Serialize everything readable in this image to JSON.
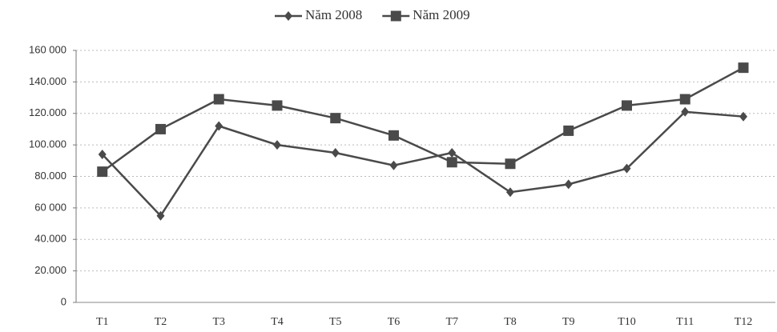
{
  "chart_data": {
    "type": "line",
    "categories": [
      "T1",
      "T2",
      "T3",
      "T4",
      "T5",
      "T6",
      "T7",
      "T8",
      "T9",
      "T10",
      "T11",
      "T12"
    ],
    "series": [
      {
        "name": "Năm 2008",
        "color": "#4a4a4a",
        "marker": "diamond",
        "values": [
          94000,
          55000,
          112000,
          100000,
          95000,
          87000,
          95000,
          70000,
          75000,
          85000,
          121000,
          118000
        ]
      },
      {
        "name": "Năm 2009",
        "color": "#4a4a4a",
        "marker": "square",
        "values": [
          83000,
          110000,
          129000,
          125000,
          117000,
          106000,
          89000,
          88000,
          109000,
          125000,
          129000,
          149000
        ]
      }
    ],
    "ylim": [
      0,
      160000
    ],
    "yticks": [
      0,
      {
        "value": 20000,
        "label": "20.000"
      },
      {
        "value": 40000,
        "label": "40.000"
      },
      {
        "value": 60000,
        "label": "60 000"
      },
      {
        "value": 80000,
        "label": "80.000"
      },
      {
        "value": 100000,
        "label": "100.000"
      },
      {
        "value": 120000,
        "label": "120.000"
      },
      {
        "value": 140000,
        "label": "140.000"
      },
      {
        "value": 160000,
        "label": "160 000"
      }
    ],
    "grid": true,
    "legend": "top"
  }
}
